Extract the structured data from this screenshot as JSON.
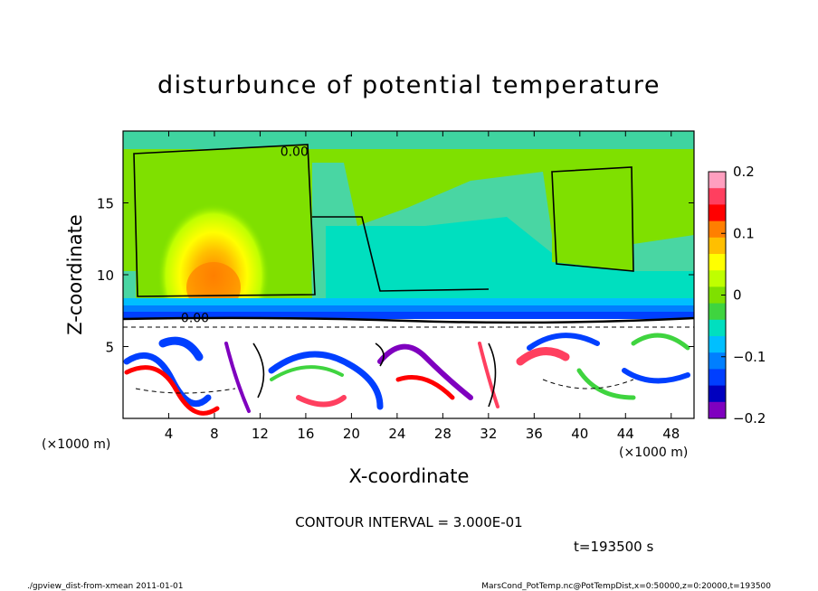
{
  "chart_data": {
    "type": "heatmap",
    "title": "disturbunce of potential temperature",
    "xlabel": "X-coordinate",
    "ylabel": "Z-coordinate",
    "x_unit": "(×1000 m)",
    "x_unit_right": "(×1000 m)",
    "xlim": [
      0,
      50
    ],
    "ylim": [
      0,
      20
    ],
    "x_ticks": [
      4,
      8,
      12,
      16,
      20,
      24,
      28,
      32,
      36,
      40,
      44,
      48
    ],
    "x_tick_labels": [
      "4",
      "8",
      "12",
      "16",
      "20",
      "24",
      "28",
      "32",
      "36",
      "40",
      "44",
      "48"
    ],
    "y_ticks": [
      5,
      10,
      15
    ],
    "y_tick_labels": [
      "5",
      "10",
      "15"
    ],
    "contour_labels": [
      {
        "text": "0.00",
        "x": 15.0,
        "z": 18.6
      },
      {
        "text": "0.00",
        "x": 6.3,
        "z": 7.0
      }
    ],
    "colorbar": {
      "range": [
        -0.2,
        0.2
      ],
      "ticks": [
        0.2,
        0.1,
        0,
        -0.1,
        -0.2
      ],
      "tick_labels": [
        "0.2",
        "0.1",
        "0",
        "−0.1",
        "−0.2"
      ],
      "colors": [
        "#ff9fbf",
        "#ff3f5f",
        "#ff0000",
        "#ff7f00",
        "#ffbf00",
        "#ffff00",
        "#bfff00",
        "#7fe000",
        "#3fd43f",
        "#00dfbf",
        "#00bfff",
        "#007fff",
        "#003fff",
        "#0000bf",
        "#7f00bf"
      ]
    },
    "contour_interval_text": "CONTOUR INTERVAL = 3.000E-01",
    "time_text": "t=193500 s"
  },
  "footer": {
    "left": "./gpview_dist-from-xmean  2011-01-01",
    "right": "MarsCond_PotTemp.nc@PotTempDist,x=0:50000,z=0:20000,t=193500"
  }
}
